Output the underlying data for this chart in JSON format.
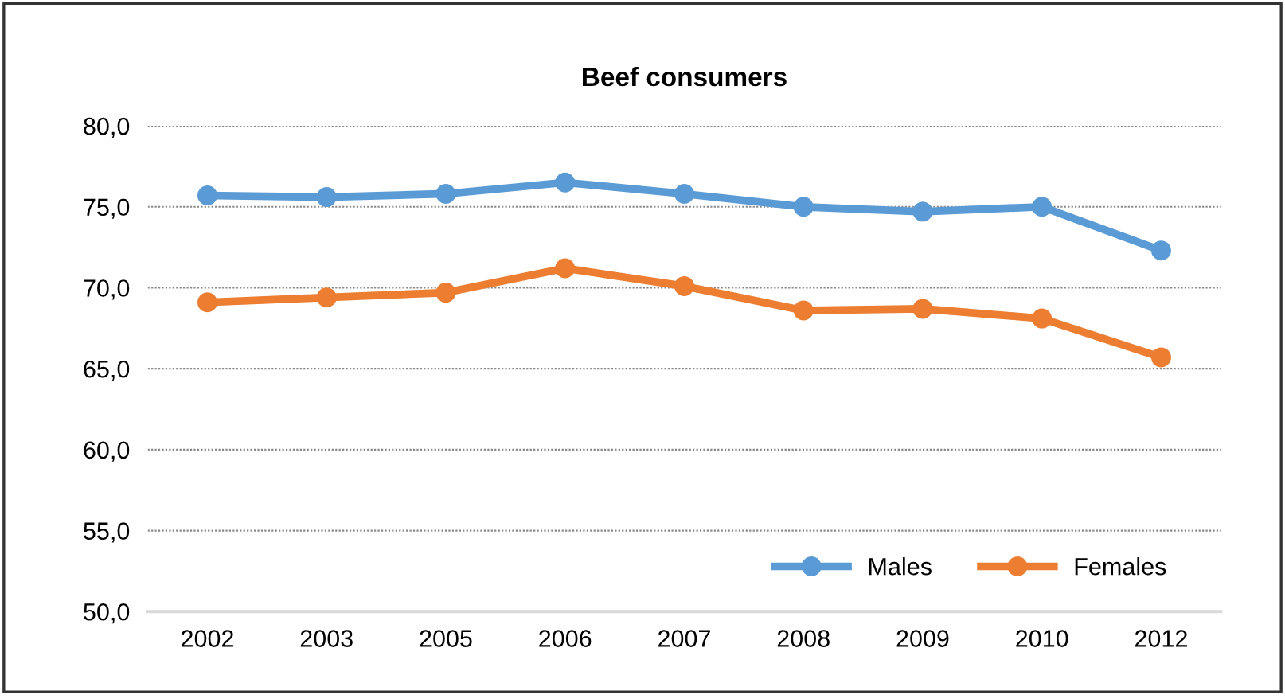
{
  "chart_data": {
    "type": "line",
    "title": "Beef consumers",
    "categories": [
      "2002",
      "2003",
      "2005",
      "2006",
      "2007",
      "2008",
      "2009",
      "2010",
      "2012"
    ],
    "series": [
      {
        "name": "Males",
        "color": "#5b9bd5",
        "values": [
          75.7,
          75.6,
          75.8,
          76.5,
          75.8,
          75.0,
          74.7,
          75.0,
          72.3
        ]
      },
      {
        "name": "Females",
        "color": "#ed7d31",
        "values": [
          69.1,
          69.4,
          69.7,
          71.2,
          70.1,
          68.6,
          68.7,
          68.1,
          65.7
        ]
      }
    ],
    "ylim": [
      50,
      80
    ],
    "yticks": [
      {
        "value": 50,
        "label": "50,0"
      },
      {
        "value": 55,
        "label": "55,0"
      },
      {
        "value": 60,
        "label": "60,0"
      },
      {
        "value": 65,
        "label": "65,0"
      },
      {
        "value": 70,
        "label": "70,0"
      },
      {
        "value": 75,
        "label": "75,0"
      },
      {
        "value": 80,
        "label": "80,0"
      }
    ],
    "grid": "y",
    "legend": "bottom right",
    "marker": "circle",
    "line_style": "solid"
  }
}
